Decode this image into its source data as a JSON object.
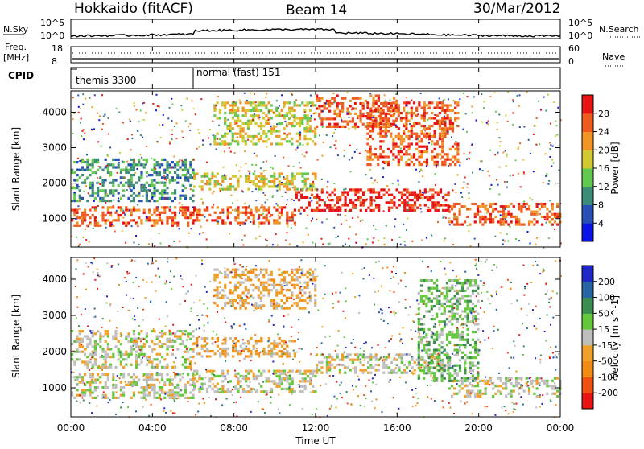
{
  "header": {
    "title": "Hokkaido (fitACF)",
    "beam": "Beam 14",
    "date": "30/Mar/2012"
  },
  "top_panels": {
    "nsky": {
      "label": "N.Sky",
      "yticks": [
        "10^5",
        "10^0"
      ],
      "right_label": "N.Search",
      "right_ticks": [
        "10^5",
        "10^0"
      ]
    },
    "freq": {
      "label_line1": "Freq.",
      "label_line2": "[MHz]",
      "yticks": [
        "18",
        "8"
      ],
      "right_label": "Nave",
      "right_ticks": [
        "60",
        "0"
      ]
    },
    "cpid": {
      "label": "CPID",
      "segments": [
        {
          "name": "themis 3300",
          "start_hour": 0
        },
        {
          "name": "normal (fast) 151",
          "start_hour": 6
        }
      ]
    }
  },
  "x_axis": {
    "label": "Time UT",
    "ticks": [
      "00:00",
      "04:00",
      "08:00",
      "12:00",
      "16:00",
      "20:00",
      "00:00"
    ]
  },
  "chart_data": [
    {
      "type": "heatmap",
      "name": "power",
      "ylabel": "Slant Range [km]",
      "yticks": [
        1000,
        2000,
        3000,
        4000
      ],
      "ylim": [
        200,
        4600
      ],
      "xlim_hours": [
        0,
        24
      ],
      "colorbar": {
        "label": "Power [dB]",
        "ticks": [
          4,
          8,
          12,
          16,
          20,
          24,
          28
        ],
        "colors": [
          "#0a14e6",
          "#2850b4",
          "#3c8c78",
          "#64c850",
          "#d2c832",
          "#f09628",
          "#f05a1e",
          "#e61414"
        ]
      },
      "bands": [
        {
          "start": 0,
          "end": 6,
          "low": 780,
          "high": 1350,
          "level": 6
        },
        {
          "start": 6,
          "end": 11,
          "low": 900,
          "high": 1350,
          "level": 6
        },
        {
          "start": 11,
          "end": 18.5,
          "low": 1250,
          "high": 1850,
          "level": 7
        },
        {
          "start": 18.5,
          "end": 24,
          "low": 800,
          "high": 1450,
          "level": 6
        },
        {
          "start": 0,
          "end": 6,
          "low": 1500,
          "high": 2700,
          "level": 2
        },
        {
          "start": 6,
          "end": 12,
          "low": 1800,
          "high": 2300,
          "level": 4
        },
        {
          "start": 7,
          "end": 12,
          "low": 3100,
          "high": 4300,
          "level": 4
        },
        {
          "start": 12,
          "end": 16,
          "low": 3600,
          "high": 4500,
          "level": 6
        },
        {
          "start": 14.5,
          "end": 19,
          "low": 2500,
          "high": 4300,
          "level": 6
        }
      ]
    },
    {
      "type": "heatmap",
      "name": "velocity",
      "ylabel": "Slant Range [km]",
      "yticks": [
        1000,
        2000,
        3000,
        4000
      ],
      "ylim": [
        200,
        4600
      ],
      "xlim_hours": [
        0,
        24
      ],
      "colorbar": {
        "label": "Velocity [m s^-1]",
        "ticks": [
          200,
          100,
          50,
          15,
          -15,
          -50,
          -100,
          -200
        ],
        "colors": [
          "#1e28c8",
          "#2864a0",
          "#3c8c50",
          "#64c83c",
          "#bebebe",
          "#f0a028",
          "#f08c14",
          "#f05014",
          "#e61414"
        ]
      },
      "bands": [
        {
          "start": 0,
          "end": 6,
          "low": 700,
          "high": 1400,
          "level": 4
        },
        {
          "start": 6,
          "end": 12,
          "low": 900,
          "high": 1500,
          "level": 4
        },
        {
          "start": 12,
          "end": 18.5,
          "low": 1400,
          "high": 1950,
          "level": 4
        },
        {
          "start": 18.5,
          "end": 24,
          "low": 800,
          "high": 1300,
          "level": 4
        },
        {
          "start": 0,
          "end": 6,
          "low": 1600,
          "high": 2600,
          "level": 4
        },
        {
          "start": 6,
          "end": 11,
          "low": 1900,
          "high": 2400,
          "level": 5
        },
        {
          "start": 7,
          "end": 12,
          "low": 3200,
          "high": 4300,
          "level": 5
        },
        {
          "start": 17,
          "end": 20,
          "low": 1200,
          "high": 4000,
          "level": 3
        }
      ]
    }
  ]
}
